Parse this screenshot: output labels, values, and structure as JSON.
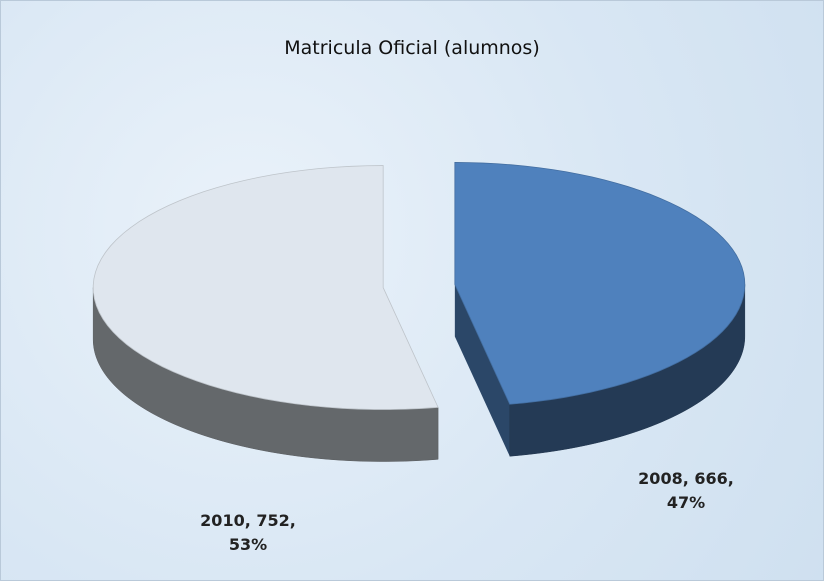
{
  "chart_data": {
    "type": "pie3d",
    "title": "Matricula Oficial (alumnos)",
    "categories": [
      "2008",
      "2010"
    ],
    "values": [
      666,
      752
    ],
    "value_labels": [
      "2008, 666, 47%",
      "2010, 752, 53%"
    ],
    "colors": [
      "#4f81bd",
      "#dfe6ee"
    ]
  }
}
